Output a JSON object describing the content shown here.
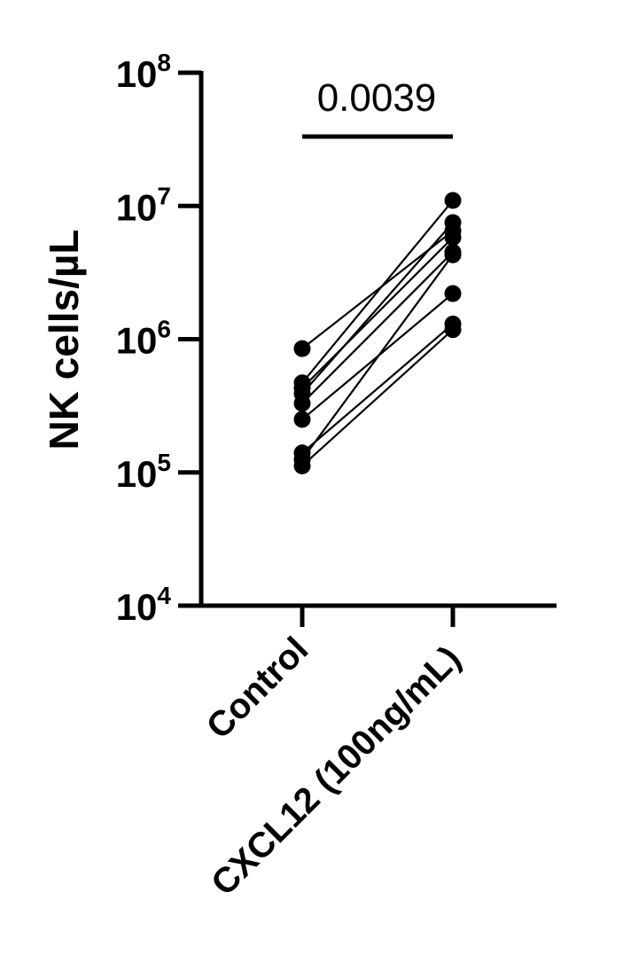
{
  "chart_data": {
    "type": "scatter",
    "style": "paired-points-connected",
    "title": "",
    "xlabel": "",
    "ylabel": "NK cells/µL",
    "y_scale": "log10",
    "ylim": [
      10000,
      100000000
    ],
    "y_ticks": [
      {
        "value": 10000,
        "base": "10",
        "exp": "4"
      },
      {
        "value": 100000,
        "base": "10",
        "exp": "5"
      },
      {
        "value": 1000000,
        "base": "10",
        "exp": "6"
      },
      {
        "value": 10000000,
        "base": "10",
        "exp": "7"
      },
      {
        "value": 100000000,
        "base": "10",
        "exp": "8"
      }
    ],
    "categories": [
      "Control",
      "CXCL12 (100ng/mL)"
    ],
    "pairs": [
      [
        850000,
        6500000
      ],
      [
        470000,
        11000000
      ],
      [
        430000,
        5800000
      ],
      [
        390000,
        7500000
      ],
      [
        330000,
        4500000
      ],
      [
        250000,
        2200000
      ],
      [
        140000,
        1300000
      ],
      [
        125000,
        4300000
      ],
      [
        112000,
        1180000
      ]
    ],
    "annotation": {
      "text": "0.0039",
      "between": [
        "Control",
        "CXCL12 (100ng/mL)"
      ]
    },
    "grid": false,
    "legend": "none",
    "colors": {
      "points": "#000000",
      "lines": "#000000",
      "axes": "#000000"
    }
  }
}
